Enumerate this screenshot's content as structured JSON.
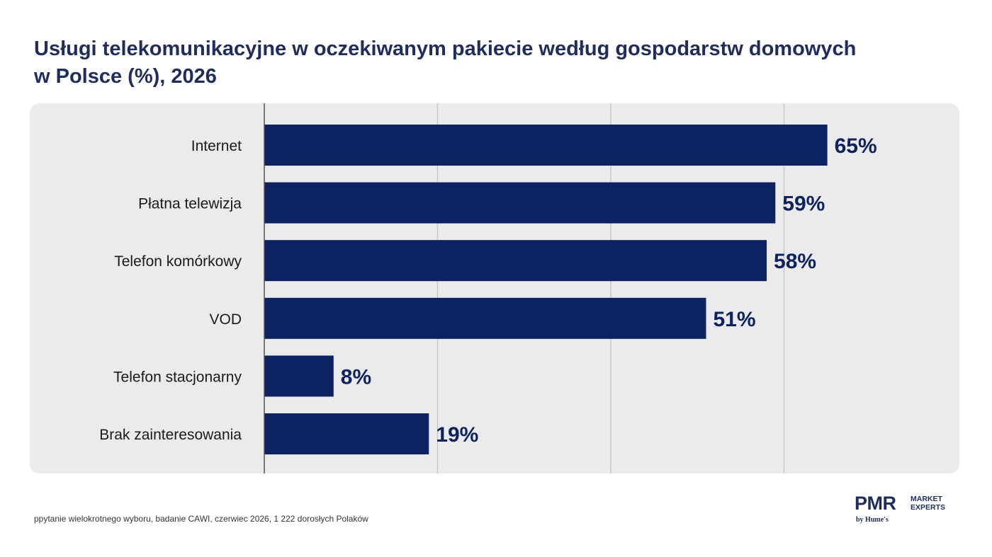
{
  "title": {
    "line1": "Usługi telekomunikacyjne w oczekiwanym pakiecie według gospodarstw domowych",
    "line2": "w Polsce (%), 2026"
  },
  "footnote": "ppytanie wielokrotnego wyboru, badanie CAWI, czerwiec 2026, 1 222 dorosłych Polaków",
  "logo": {
    "brand": "PMR",
    "sub_line1": "MARKET",
    "sub_line2": "EXPERTS",
    "byline": "by Hume's"
  },
  "colors": {
    "bar": "#0d2260",
    "label_value": "#0d2260",
    "panel": "#ebebeb",
    "gridline": "#c8c8c8",
    "axis": "#555555"
  },
  "chart_data": {
    "type": "bar",
    "orientation": "horizontal",
    "categories": [
      "Internet",
      "Płatna telewizja",
      "Telefon komórkowy",
      "VOD",
      "Telefon stacjonarny",
      "Brak zainteresowania"
    ],
    "values": [
      65,
      59,
      58,
      51,
      8,
      19
    ],
    "value_labels": [
      "65%",
      "59%",
      "58%",
      "51%",
      "8%",
      "19%"
    ],
    "xlim": [
      0,
      80
    ],
    "grid": true,
    "legend": "none"
  }
}
